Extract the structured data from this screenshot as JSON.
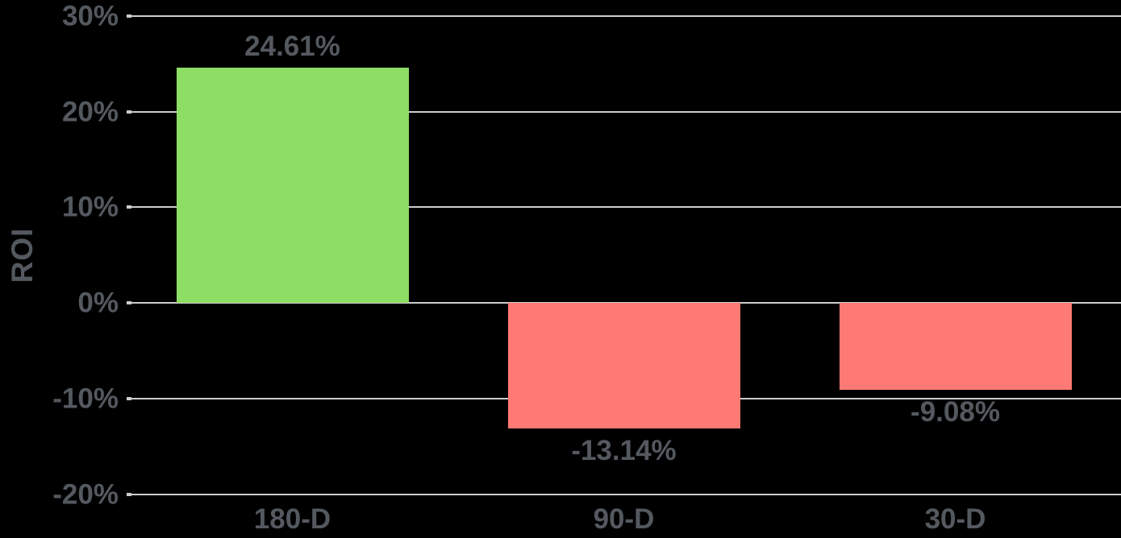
{
  "chart_data": {
    "type": "bar",
    "title": "",
    "xlabel": "",
    "ylabel": "ROI",
    "categories": [
      "180-D",
      "90-D",
      "30-D"
    ],
    "values": [
      24.61,
      -13.14,
      -9.08
    ],
    "value_labels": [
      "24.61%",
      "-13.14%",
      "-9.08%"
    ],
    "y_ticks": [
      30,
      20,
      10,
      0,
      -10,
      -20
    ],
    "y_tick_labels": [
      "30%",
      "20%",
      "10%",
      "0%",
      "-10%",
      "-20%"
    ],
    "ylim": [
      -20,
      30
    ],
    "grid": true,
    "legend": false,
    "colors": {
      "positive_bar": "#8edd65",
      "negative_bar": "#ff7a74",
      "gridline": "#cdcdcd",
      "text": "#545960",
      "background": "#000000"
    }
  }
}
